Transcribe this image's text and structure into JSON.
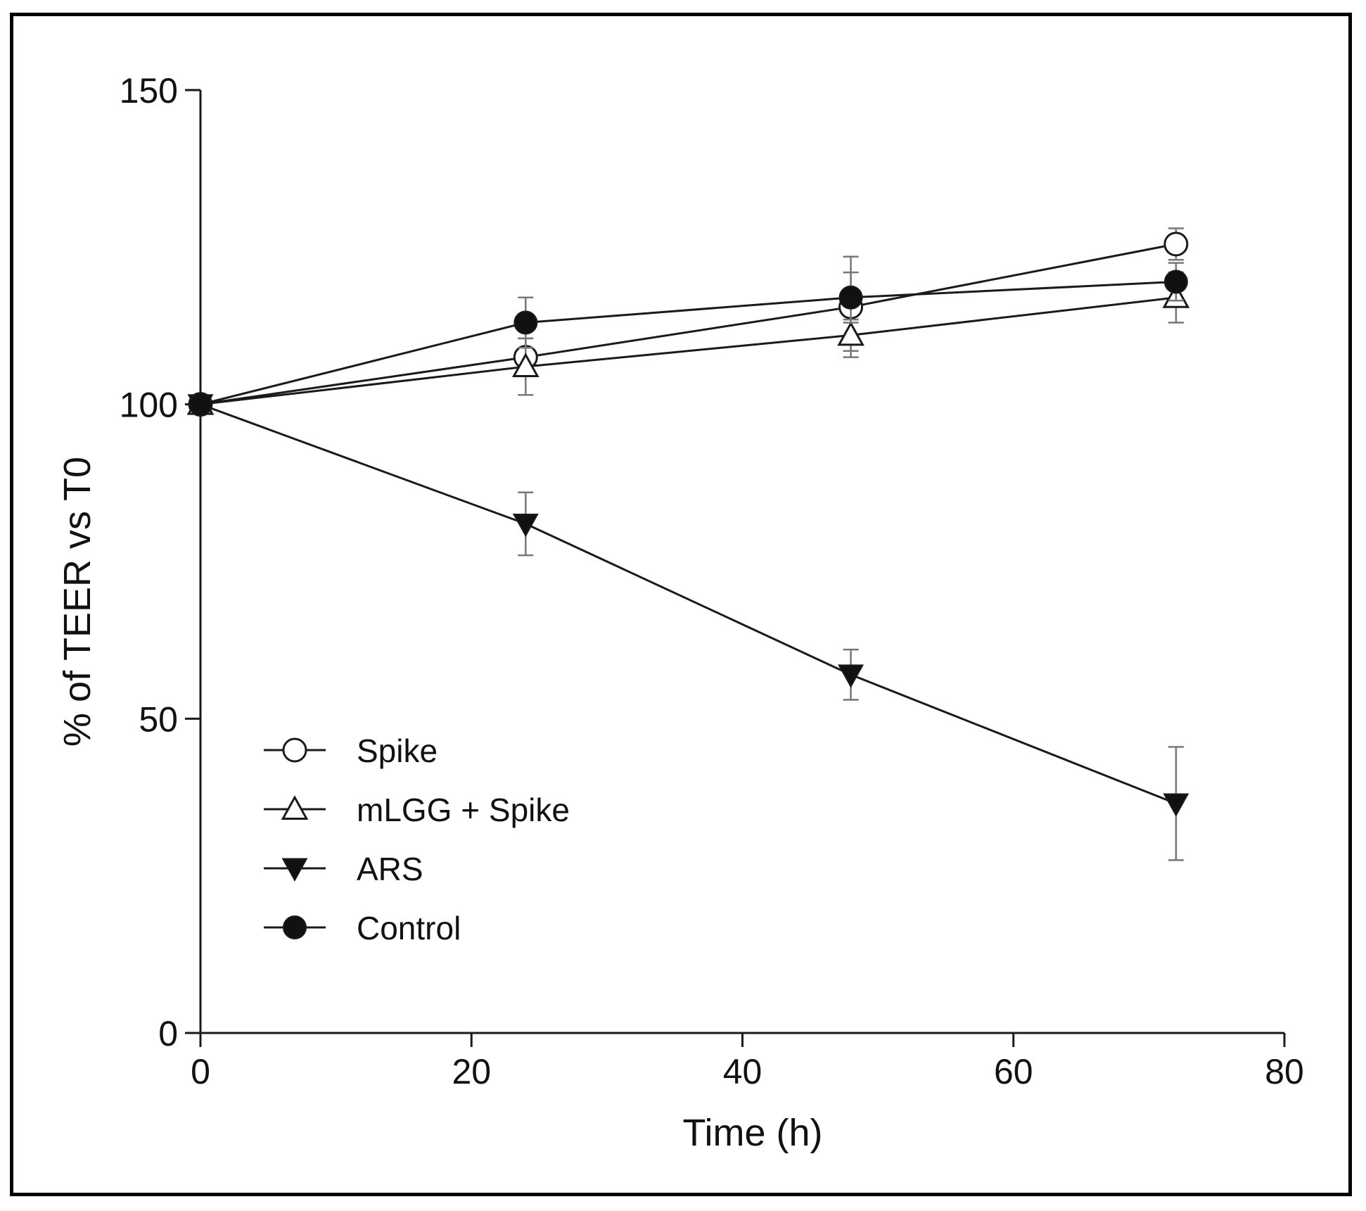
{
  "chart_data": {
    "type": "line",
    "title": "",
    "xlabel": "Time (h)",
    "ylabel": "% of TEER vs T0",
    "xlim": [
      0,
      80
    ],
    "ylim": [
      0,
      150
    ],
    "x_ticks": [
      0,
      20,
      40,
      60,
      80
    ],
    "y_ticks": [
      0,
      50,
      100,
      150
    ],
    "x_tick_labels": [
      "0",
      "20",
      "40",
      "60",
      "80"
    ],
    "y_tick_labels": [
      "0",
      "50",
      "100",
      "150"
    ],
    "grid": false,
    "legend_position": "lower-left",
    "x": [
      0,
      24,
      48,
      72
    ],
    "series": [
      {
        "name": "Spike",
        "marker": "circle-open",
        "values": [
          100,
          107.5,
          115.5,
          125.5
        ],
        "errors": [
          0,
          3,
          8,
          2.5
        ]
      },
      {
        "name": "mLGG + Spike",
        "marker": "triangle-up-open",
        "values": [
          100,
          106,
          111,
          117
        ],
        "errors": [
          0,
          4.5,
          2.5,
          4
        ]
      },
      {
        "name": "ARS",
        "marker": "triangle-down-filled",
        "values": [
          100,
          81,
          57,
          36.5
        ],
        "errors": [
          0,
          5,
          4,
          9
        ]
      },
      {
        "name": "Control",
        "marker": "circle-filled",
        "values": [
          100,
          113,
          117,
          119.5
        ],
        "errors": [
          0,
          4,
          4,
          3
        ]
      }
    ],
    "colors": {
      "line": "#1a1a1a",
      "marker_fill_filled": "#111111",
      "marker_fill_open": "#ffffff",
      "error_bar": "#777777"
    }
  }
}
